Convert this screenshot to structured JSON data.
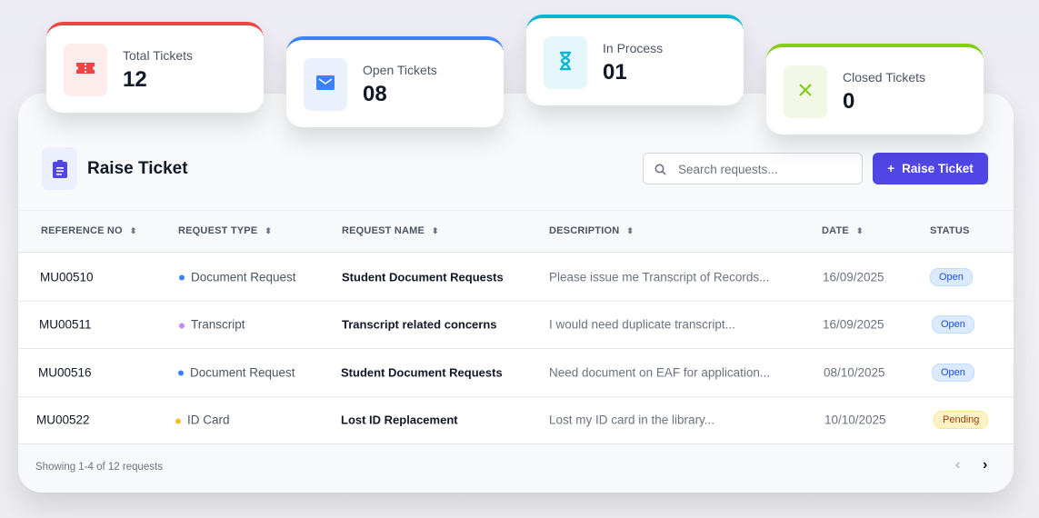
{
  "stats": [
    {
      "label": "Total Tickets",
      "value": "12",
      "color": "#ef4444",
      "bg": "#fdecec",
      "icon": "ticket-icon"
    },
    {
      "label": "Open Tickets",
      "value": "08",
      "color": "#3b82f6",
      "bg": "#eaf1fd",
      "icon": "envelope-icon"
    },
    {
      "label": "In Process",
      "value": "01",
      "color": "#06b6d4",
      "bg": "#e5f7fb",
      "icon": "hourglass-icon"
    },
    {
      "label": "Closed Tickets",
      "value": "0",
      "color": "#84cc16",
      "bg": "#f1f8e6",
      "icon": "close-x-icon"
    }
  ],
  "header": {
    "title": "Raise Ticket",
    "icon": "clipboard-icon",
    "search_placeholder": "Search requests...",
    "button_label": "Raise Ticket",
    "accent": "#4f46e5"
  },
  "columns": [
    "REFERENCE NO",
    "REQUEST TYPE",
    "REQUEST NAME",
    "DESCRIPTION",
    "DATE",
    "STATUS"
  ],
  "rows": [
    {
      "ref": "MU00510",
      "type": "Document Request",
      "type_color": "#3b82f6",
      "name": "Student Document Requests",
      "desc": "Please issue me Transcript of Records...",
      "date": "16/09/2025",
      "status": "Open"
    },
    {
      "ref": "MU00511",
      "type": "Transcript",
      "type_color": "#c084fc",
      "name": "Transcript related concerns",
      "desc": "I would need duplicate transcript...",
      "date": "16/09/2025",
      "status": "Open"
    },
    {
      "ref": "MU00516",
      "type": "Document Request",
      "type_color": "#3b82f6",
      "name": "Student Document Requests",
      "desc": "Need document on EAF for application...",
      "date": "08/10/2025",
      "status": "Open"
    },
    {
      "ref": "MU00522",
      "type": "ID Card",
      "type_color": "#fbbf24",
      "name": "Lost ID Replacement",
      "desc": "Lost my ID card in the library...",
      "date": "10/10/2025",
      "status": "Pending"
    }
  ],
  "status_colors": {
    "Open": {
      "bg": "#dbeafe",
      "fg": "#1d4ed8",
      "border": "#bfdbfe"
    },
    "Pending": {
      "bg": "#fef3c7",
      "fg": "#92400e",
      "border": "#fde68a"
    }
  },
  "footer": {
    "showing": "Showing 1-4 of 12 requests",
    "prev": "‹",
    "next": "›"
  }
}
